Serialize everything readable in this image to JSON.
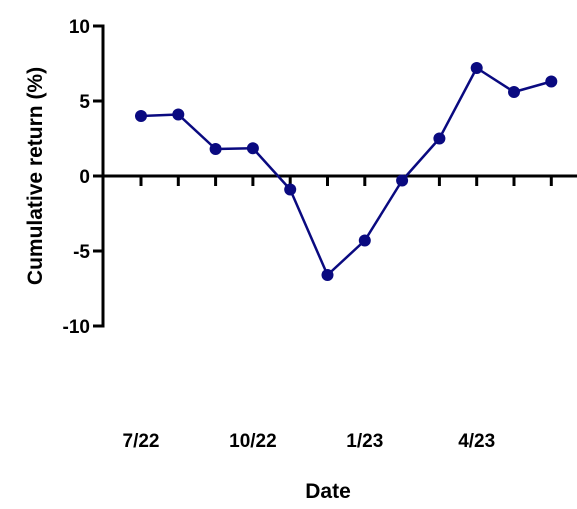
{
  "chart_data": {
    "type": "line",
    "title": "",
    "xlabel": "Date",
    "ylabel": "Cumulative return (%)",
    "ylim": [
      -10,
      10
    ],
    "yticks": [
      10,
      5,
      0,
      -5,
      -10
    ],
    "x_tick_labels": [
      {
        "x": 0,
        "label": "7/22"
      },
      {
        "x": 3,
        "label": "10/22"
      },
      {
        "x": 6,
        "label": "1/23"
      },
      {
        "x": 9,
        "label": "4/23"
      }
    ],
    "x_minor_ticks": [
      0,
      1,
      2,
      3,
      4,
      5,
      6,
      7,
      8,
      9,
      10,
      11,
      12
    ],
    "series": [
      {
        "color": "#0a0a80",
        "x": [
          0,
          1,
          2,
          3,
          4,
          5,
          6,
          7,
          8,
          9,
          10,
          11
        ],
        "y": [
          4.0,
          4.1,
          1.8,
          1.85,
          -0.9,
          -6.6,
          -4.3,
          -0.3,
          2.5,
          7.2,
          5.6,
          6.3
        ]
      }
    ]
  }
}
